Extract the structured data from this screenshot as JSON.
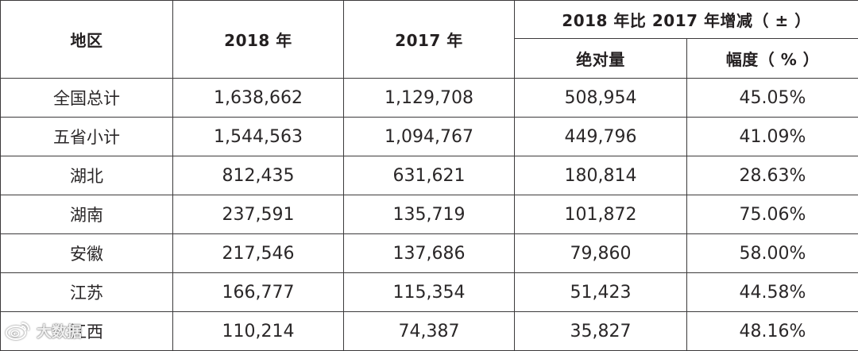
{
  "header": {
    "region": "地区",
    "year_2018": "2018 年",
    "year_2017": "2017 年",
    "change_group": "2018 年比 2017 年增减（ ± ）",
    "absolute": "绝对量",
    "percent": "幅度（ % ）"
  },
  "total": {
    "region": "全国总计",
    "y2018": "1,638,662",
    "y2017": "1,129,708",
    "absolute": "508,954",
    "percent": "45.05%"
  },
  "rows": [
    {
      "region": "五省小计",
      "y2018": "1,544,563",
      "y2017": "1,094,767",
      "absolute": "449,796",
      "percent": "41.09%"
    },
    {
      "region": "湖北",
      "y2018": "812,435",
      "y2017": "631,621",
      "absolute": "180,814",
      "percent": "28.63%"
    },
    {
      "region": "湖南",
      "y2018": "237,591",
      "y2017": "135,719",
      "absolute": "101,872",
      "percent": "75.06%"
    },
    {
      "region": "安徽",
      "y2018": "217,546",
      "y2017": "137,686",
      "absolute": "79,860",
      "percent": "58.00%"
    },
    {
      "region": "江苏",
      "y2018": "166,777",
      "y2017": "115,354",
      "absolute": "51,423",
      "percent": "44.58%"
    },
    {
      "region": "江西",
      "y2018": "110,214",
      "y2017": "74,387",
      "absolute": "35,827",
      "percent": "48.16%"
    }
  ],
  "watermark": {
    "text": "大数据",
    "icon": "weibo-logo-icon"
  },
  "colors": {
    "border": "#3c3a3b",
    "text": "#231f20",
    "background": "#ffffff"
  }
}
